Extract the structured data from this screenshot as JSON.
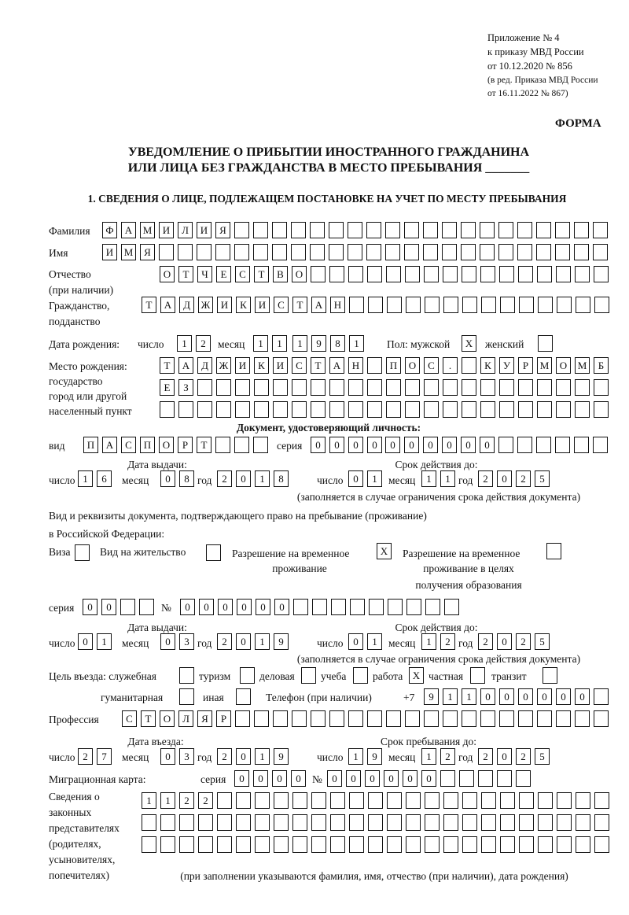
{
  "header": {
    "line1": "Приложение № 4",
    "line2": "к приказу МВД России",
    "line3": "от 10.12.2020 № 856",
    "line4": "(в ред. Приказа МВД России",
    "line5": "от 16.11.2022 № 867)",
    "forma": "ФОРМА"
  },
  "title": {
    "line1": "УВЕДОМЛЕНИЕ О ПРИБЫТИИ ИНОСТРАННОГО ГРАЖДАНИНА",
    "line2": "ИЛИ ЛИЦА БЕЗ ГРАЖДАНСТВА В МЕСТО ПРЕБЫВАНИЯ _______"
  },
  "section1": "1. СВЕДЕНИЯ О ЛИЦЕ, ПОДЛЕЖАЩЕМ ПОСТАНОВКЕ НА УЧЕТ ПО МЕСТУ ПРЕБЫВАНИЯ",
  "labels": {
    "surname": "Фамилия",
    "name": "Имя",
    "patronymic": "Отчество",
    "patronymic2": "(при наличии)",
    "citizenship": "Гражданство,",
    "citizenship2": "подданство",
    "birth_date": "Дата рождения:",
    "day": "число",
    "month": "месяц",
    "year": "год",
    "sex": "Пол: мужской",
    "female": "женский",
    "birthplace1": "Место рождения:",
    "birthplace2": "государство",
    "birthplace3": "город или другой",
    "birthplace4": "населенный пункт",
    "id_doc": "Документ, удостоверяющий личность:",
    "kind": "вид",
    "series": "серия",
    "number": "№",
    "issue_date": "Дата выдачи:",
    "valid_until": "Срок действия до:",
    "valid_note": "(заполняется в случае ограничения срока действия документа)",
    "stay_doc1": "Вид и реквизиты документа, подтверждающего право на пребывание (проживание)",
    "stay_doc2": "в Российской Федерации:",
    "visa": "Виза",
    "residence": "Вид на жительство",
    "trp1": "Разрешение на временное",
    "trp2": "проживание",
    "trpe1": "Разрешение на временное",
    "trpe2": "проживание в целях",
    "trpe3": "получения образования",
    "purpose": "Цель въезда: служебная",
    "tourism": "туризм",
    "business": "деловая",
    "study": "учеба",
    "work": "работа",
    "private": "частная",
    "transit": "транзит",
    "humanitarian": "гуманитарная",
    "other": "иная",
    "phone": "Телефон (при наличии)",
    "phone_prefix": "+7",
    "profession": "Профессия",
    "entry_date": "Дата въезда:",
    "stay_until": "Срок пребывания до:",
    "migration_card": "Миграционная карта:",
    "rep1": "Сведения о",
    "rep2": "законных",
    "rep3": "представителях",
    "rep4": "(родителях,",
    "rep5": "усыновителях,",
    "rep6": "попечителях)",
    "rep_note": "(при заполнении указываются фамилия, имя, отчество (при наличии), дата рождения)"
  },
  "fields": {
    "surname": [
      "Ф",
      "А",
      "М",
      "И",
      "Л",
      "И",
      "Я"
    ],
    "name": [
      "И",
      "М",
      "Я"
    ],
    "patronymic": [
      "О",
      "Т",
      "Ч",
      "Е",
      "С",
      "Т",
      "В",
      "О"
    ],
    "citizenship": [
      "Т",
      "А",
      "Д",
      "Ж",
      "И",
      "К",
      "И",
      "С",
      "Т",
      "А",
      "Н"
    ],
    "birth_day": [
      "1",
      "2"
    ],
    "birth_month": [
      "1",
      "1"
    ],
    "birth_year": [
      "1",
      "9",
      "8",
      "1"
    ],
    "sex_male": [
      "X"
    ],
    "sex_female": [],
    "birthplace1": [
      "Т",
      "А",
      "Д",
      "Ж",
      "И",
      "К",
      "И",
      "С",
      "Т",
      "А",
      "Н",
      "",
      "П",
      "О",
      "С",
      ".",
      "",
      "К",
      "У",
      "Р",
      "М",
      "О",
      "М",
      "Б"
    ],
    "birthplace2": [
      "Е",
      "З"
    ],
    "birthplace3": [],
    "doc_kind": [
      "П",
      "А",
      "С",
      "П",
      "О",
      "Р",
      "Т"
    ],
    "doc_series": [
      "0",
      "0",
      "0",
      "0"
    ],
    "doc_number": [
      "0",
      "0",
      "0",
      "0",
      "0",
      "0"
    ],
    "doc_issue_day": [
      "1",
      "6"
    ],
    "doc_issue_month": [
      "0",
      "8"
    ],
    "doc_issue_year": [
      "2",
      "0",
      "1",
      "8"
    ],
    "doc_valid_day": [
      "0",
      "1"
    ],
    "doc_valid_month": [
      "1",
      "1"
    ],
    "doc_valid_year": [
      "2",
      "0",
      "2",
      "5"
    ],
    "visa": [],
    "residence": [],
    "trp": [
      "X"
    ],
    "trpe": [],
    "stay_series": [
      "0",
      "0"
    ],
    "stay_number": [
      "0",
      "0",
      "0",
      "0",
      "0",
      "0"
    ],
    "stay_issue_day": [
      "0",
      "1"
    ],
    "stay_issue_month": [
      "0",
      "3"
    ],
    "stay_issue_year": [
      "2",
      "0",
      "1",
      "9"
    ],
    "stay_valid_day": [
      "0",
      "1"
    ],
    "stay_valid_month": [
      "1",
      "2"
    ],
    "stay_valid_year": [
      "2",
      "0",
      "2",
      "5"
    ],
    "p_official": [],
    "p_tourism": [],
    "p_business": [],
    "p_study": [],
    "p_work": [
      "X"
    ],
    "p_private": [],
    "p_transit": [],
    "p_humanitarian": [],
    "p_other": [],
    "phone": [
      "9",
      "1",
      "1",
      "0",
      "0",
      "0",
      "0",
      "0",
      "0"
    ],
    "profession": [
      "С",
      "Т",
      "О",
      "Л",
      "Я",
      "Р"
    ],
    "entry_day": [
      "2",
      "7"
    ],
    "entry_month": [
      "0",
      "3"
    ],
    "entry_year": [
      "2",
      "0",
      "1",
      "9"
    ],
    "until_day": [
      "1",
      "9"
    ],
    "until_month": [
      "1",
      "2"
    ],
    "until_year": [
      "2",
      "0",
      "2",
      "5"
    ],
    "mc_series": [
      "0",
      "0",
      "0",
      "0"
    ],
    "mc_number": [
      "0",
      "0",
      "0",
      "0",
      "0",
      "0"
    ],
    "rep1": [
      "1",
      "1",
      "2",
      "2"
    ],
    "rep2": [],
    "rep3": []
  }
}
